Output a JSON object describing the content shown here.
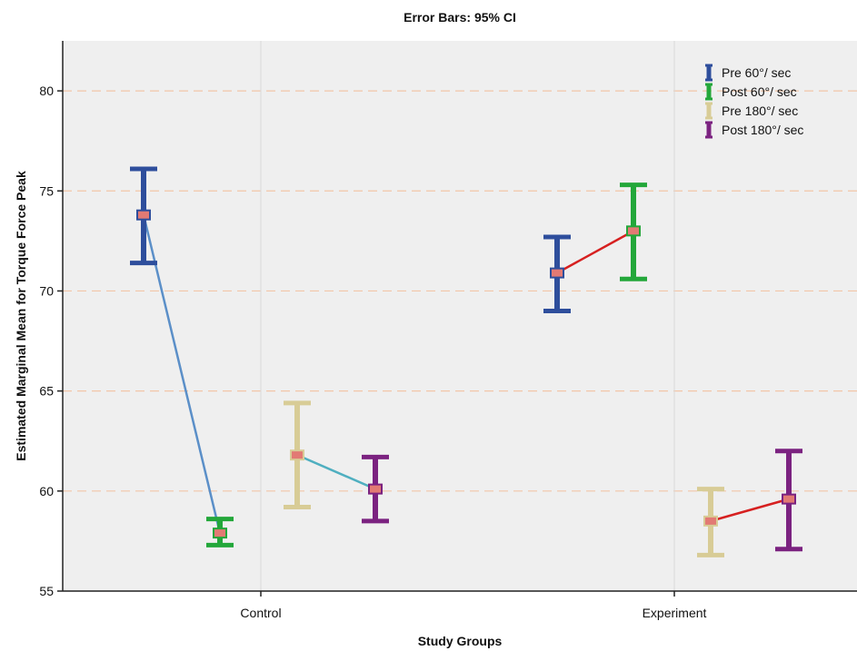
{
  "chart_data": {
    "type": "error-bar",
    "title": "Error Bars: 95% CI",
    "xlabel": "Study Groups",
    "ylabel": "Estimated Marginal Mean for Torque Force Peak",
    "ylim": [
      55,
      82.5
    ],
    "yticks": [
      55,
      60,
      65,
      70,
      75,
      80
    ],
    "categories": [
      "Control",
      "Experiment"
    ],
    "grid": {
      "horizontal": true,
      "vertical": true,
      "style": "dashed"
    },
    "legend_position": "top-right",
    "series": [
      {
        "name": "Pre 60°/ sec",
        "color": "#2E4E9C",
        "points": [
          {
            "category": "Control",
            "mean": 73.8,
            "lower": 71.4,
            "upper": 76.1
          },
          {
            "category": "Experiment",
            "mean": 70.9,
            "lower": 69.0,
            "upper": 72.7
          }
        ]
      },
      {
        "name": "Post 60°/ sec",
        "color": "#23A73A",
        "points": [
          {
            "category": "Control",
            "mean": 57.9,
            "lower": 57.3,
            "upper": 58.6
          },
          {
            "category": "Experiment",
            "mean": 73.0,
            "lower": 70.6,
            "upper": 75.3
          }
        ]
      },
      {
        "name": "Pre 180°/ sec",
        "color": "#D8CC96",
        "points": [
          {
            "category": "Control",
            "mean": 61.8,
            "lower": 59.2,
            "upper": 64.4
          },
          {
            "category": "Experiment",
            "mean": 58.5,
            "lower": 56.8,
            "upper": 60.1
          }
        ]
      },
      {
        "name": "Post 180°/ sec",
        "color": "#7B2280",
        "points": [
          {
            "category": "Control",
            "mean": 60.1,
            "lower": 58.5,
            "upper": 61.7
          },
          {
            "category": "Experiment",
            "mean": 59.6,
            "lower": 57.1,
            "upper": 62.0
          }
        ]
      }
    ],
    "connectors": [
      {
        "category": "Control",
        "from_series": "Pre 60°/ sec",
        "to_series": "Post 60°/ sec",
        "color": "#5B8FC8"
      },
      {
        "category": "Control",
        "from_series": "Pre 180°/ sec",
        "to_series": "Post 180°/ sec",
        "color": "#4FAFC0"
      },
      {
        "category": "Experiment",
        "from_series": "Pre 60°/ sec",
        "to_series": "Post 60°/ sec",
        "color": "#D62020"
      },
      {
        "category": "Experiment",
        "from_series": "Pre 180°/ sec",
        "to_series": "Post 180°/ sec",
        "color": "#D62020"
      }
    ],
    "colors": {
      "plot_background": "#EFEFEF",
      "grid_dash": "#F2C6A8",
      "vertical_grid": "#DADADA",
      "axis": "#222222",
      "marker": "#E27A74"
    }
  }
}
